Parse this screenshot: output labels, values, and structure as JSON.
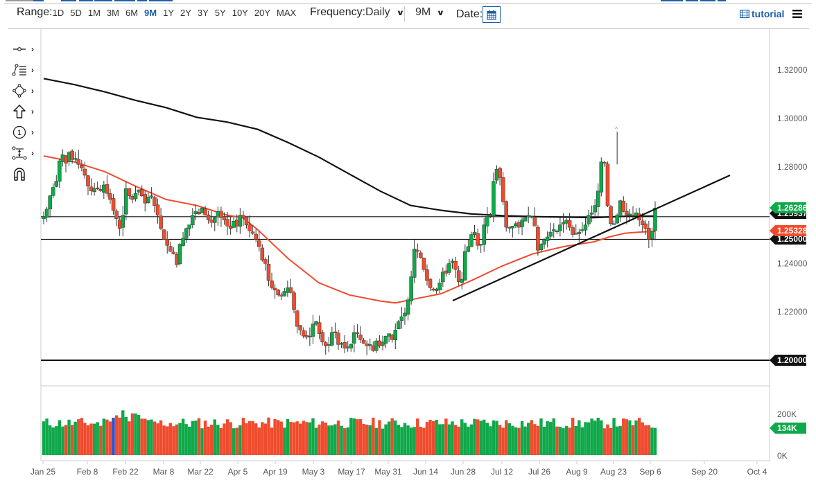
{
  "toolbar": {
    "range_label": "Range:",
    "ranges": [
      "1D",
      "5D",
      "1M",
      "3M",
      "6M",
      "9M",
      "1Y",
      "2Y",
      "3Y",
      "5Y",
      "10Y",
      "20Y",
      "MAX"
    ],
    "active_range": "9M",
    "frequency_label": "Frequency:",
    "frequency_value": "Daily",
    "period_value": "9M",
    "date_label": "Date:",
    "calendar_icon": "calendar-icon",
    "tutorial_label": "tutorial",
    "tutorial_icon": "film-icon",
    "menu_icon": "hamburger-menu-icon"
  },
  "sidebar": {
    "tools": [
      {
        "name": "line-tool",
        "icon": "line-segment-icon",
        "has_submenu": true
      },
      {
        "name": "fibonacci-tool",
        "icon": "fib-retracement-icon",
        "has_submenu": true
      },
      {
        "name": "shape-tool",
        "icon": "polygon-icon",
        "has_submenu": true
      },
      {
        "name": "arrow-tool",
        "icon": "arrow-up-icon",
        "has_submenu": true
      },
      {
        "name": "annotation-tool",
        "icon": "numbered-circle-icon",
        "has_submenu": true
      },
      {
        "name": "measure-tool",
        "icon": "measure-icon",
        "has_submenu": true
      },
      {
        "name": "magnet-tool",
        "icon": "magnet-icon",
        "has_submenu": false
      }
    ]
  },
  "colors": {
    "up": "#0fa84a",
    "down": "#f04b2d",
    "sma_fast": "#f04b2d",
    "sma_slow": "#111111",
    "accent": "#1a5fa8",
    "grid_border": "#cccccc",
    "highlight_volume": "#2a4fc7"
  },
  "chart_data": {
    "type": "candlestick",
    "title": "",
    "frequency": "Daily",
    "range": "9M",
    "price_axis": {
      "ticks": [
        1.32,
        1.3,
        1.28,
        1.26,
        1.24,
        1.22,
        1.2
      ],
      "tick_labels": [
        "1.32000",
        "1.30000",
        "1.28000",
        "1.26000",
        "1.24000",
        "1.22000",
        "1.20000"
      ],
      "ylim": [
        1.195,
        1.332
      ]
    },
    "x_axis": {
      "tick_labels": [
        "Jan 25",
        "Feb 8",
        "Feb 22",
        "Mar 8",
        "Mar 22",
        "Apr 5",
        "Apr 19",
        "May 3",
        "May 17",
        "May 31",
        "Jun 14",
        "Jun 28",
        "Jul 12",
        "Jul 26",
        "Aug 9",
        "Aug 23",
        "Sep 6",
        "Sep 20",
        "Oct 4"
      ]
    },
    "price_badges": [
      {
        "label": "1.26286",
        "value": 1.26286,
        "color": "#0fa84a",
        "meaning": "last close"
      },
      {
        "label": "1.25937",
        "value": 1.25937,
        "color": "#111111",
        "meaning": "horizontal line (partially hidden)"
      },
      {
        "label": "1.25328",
        "value": 1.25328,
        "color": "#f04b2d",
        "meaning": "fast moving average"
      },
      {
        "label": "1.25000",
        "value": 1.25,
        "color": "#111111",
        "meaning": "horizontal line (partially hidden)"
      },
      {
        "label": "1.20000",
        "value": 1.2,
        "color": "#111111",
        "meaning": "horizontal support line"
      }
    ],
    "horizontal_lines": [
      1.25937,
      1.25,
      1.2
    ],
    "trendline": {
      "from": {
        "bar": 136,
        "price": 1.2245
      },
      "to": {
        "bar": 205,
        "price": 1.2775
      }
    },
    "volume_axis": {
      "tick_labels": [
        "200K",
        "0K"
      ],
      "ylim": [
        0,
        260000
      ]
    },
    "volume_badge": {
      "label": "134K",
      "value": 134000,
      "color": "#0fa84a"
    },
    "series_close_path": [
      1.2595,
      1.2625,
      1.268,
      1.2715,
      1.274,
      1.2825,
      1.285,
      1.2815,
      1.286,
      1.283,
      1.2835,
      1.281,
      1.2795,
      1.2765,
      1.272,
      1.27,
      1.271,
      1.271,
      1.27,
      1.2725,
      1.269,
      1.2665,
      1.262,
      1.2585,
      1.2545,
      1.26,
      1.271,
      1.268,
      1.2665,
      1.269,
      1.2705,
      1.268,
      1.265,
      1.2675,
      1.268,
      1.264,
      1.26,
      1.2545,
      1.25,
      1.2475,
      1.245,
      1.244,
      1.2395,
      1.248,
      1.2505,
      1.2545,
      1.256,
      1.26,
      1.2615,
      1.2605,
      1.263,
      1.26,
      1.258,
      1.257,
      1.259,
      1.2615,
      1.259,
      1.258,
      1.2555,
      1.2545,
      1.2575,
      1.2555,
      1.26,
      1.259,
      1.256,
      1.2535,
      1.2525,
      1.25,
      1.247,
      1.2415,
      1.24,
      1.233,
      1.23,
      1.229,
      1.227,
      1.2265,
      1.2285,
      1.23,
      1.228,
      1.221,
      1.214,
      1.2125,
      1.21,
      1.2095,
      1.21,
      1.215,
      1.216,
      1.211,
      1.2075,
      1.206,
      1.2065,
      1.2115,
      1.2115,
      1.2065,
      1.207,
      1.205,
      1.2055,
      1.2065,
      1.2115,
      1.211,
      1.2085,
      1.207,
      1.206,
      1.2065,
      1.204,
      1.208,
      1.206,
      1.2075,
      1.21,
      1.211,
      1.2085,
      1.2125,
      1.216,
      1.218,
      1.2195,
      1.225,
      1.2345,
      1.246,
      1.245,
      1.2425,
      1.2375,
      1.233,
      1.23,
      1.229,
      1.2295,
      1.232,
      1.2365,
      1.236,
      1.24,
      1.241,
      1.2375,
      1.2325,
      1.2335,
      1.245,
      1.247,
      1.252,
      1.253,
      1.2475,
      1.248,
      1.256,
      1.2595,
      1.26,
      1.274,
      1.279,
      1.2755,
      1.2655,
      1.255,
      1.255,
      1.2555,
      1.2565,
      1.255,
      1.258,
      1.259,
      1.26,
      1.2595,
      1.2555,
      1.2455,
      1.248,
      1.25,
      1.251,
      1.253,
      1.254,
      1.2535,
      1.256,
      1.257,
      1.258,
      1.255,
      1.252,
      1.2525,
      1.253,
      1.254,
      1.256,
      1.26,
      1.261,
      1.264,
      1.27,
      1.282,
      1.2815,
      1.264,
      1.2565,
      1.2565,
      1.26,
      1.266,
      1.2615,
      1.26,
      1.2605,
      1.26,
      1.261,
      1.258,
      1.256,
      1.2545,
      1.25,
      1.2533,
      1.2629
    ],
    "sma_fast_points": [
      [
        0,
        1.2845
      ],
      [
        10,
        1.282
      ],
      [
        20,
        1.278
      ],
      [
        30,
        1.272
      ],
      [
        40,
        1.2665
      ],
      [
        50,
        1.264
      ],
      [
        60,
        1.26
      ],
      [
        65,
        1.259
      ],
      [
        70,
        1.254
      ],
      [
        80,
        1.242
      ],
      [
        90,
        1.232
      ],
      [
        100,
        1.227
      ],
      [
        110,
        1.2245
      ],
      [
        115,
        1.2237
      ],
      [
        120,
        1.225
      ],
      [
        130,
        1.2275
      ],
      [
        140,
        1.233
      ],
      [
        150,
        1.239
      ],
      [
        160,
        1.244
      ],
      [
        170,
        1.247
      ],
      [
        180,
        1.249
      ],
      [
        185,
        1.251
      ],
      [
        190,
        1.2525
      ],
      [
        195,
        1.253
      ],
      [
        200,
        1.2533
      ]
    ],
    "sma_slow_points": [
      [
        0,
        1.3165
      ],
      [
        10,
        1.314
      ],
      [
        20,
        1.311
      ],
      [
        30,
        1.3075
      ],
      [
        40,
        1.3045
      ],
      [
        50,
        1.3005
      ],
      [
        60,
        1.2985
      ],
      [
        70,
        1.2955
      ],
      [
        80,
        1.29
      ],
      [
        90,
        1.284
      ],
      [
        100,
        1.277
      ],
      [
        110,
        1.27
      ],
      [
        120,
        1.264
      ],
      [
        130,
        1.262
      ],
      [
        140,
        1.2605
      ],
      [
        150,
        1.2598
      ],
      [
        160,
        1.2594
      ],
      [
        170,
        1.2592
      ],
      [
        180,
        1.259
      ],
      [
        190,
        1.2595
      ],
      [
        200,
        1.2596
      ]
    ]
  }
}
